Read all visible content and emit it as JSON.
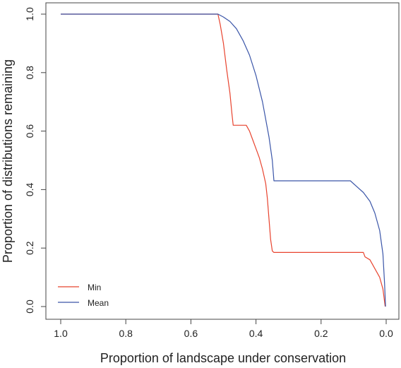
{
  "chart_data": {
    "type": "line",
    "title": "",
    "xlabel": "Proportion of landscape under conservation",
    "ylabel": "Proportion of distributions remaining",
    "xlim": [
      1.0,
      0.0
    ],
    "ylim": [
      0.0,
      1.0
    ],
    "x_ticks": [
      "1.0",
      "0.8",
      "0.6",
      "0.4",
      "0.2",
      "0.0"
    ],
    "y_ticks": [
      "0.0",
      "0.2",
      "0.4",
      "0.6",
      "0.8",
      "1.0"
    ],
    "grid": false,
    "legend": "bottom-left",
    "series": [
      {
        "name": "Min",
        "color": "#e8432e",
        "points": [
          [
            1.0,
            1.0
          ],
          [
            0.517,
            1.0
          ],
          [
            0.51,
            0.965
          ],
          [
            0.5,
            0.9
          ],
          [
            0.49,
            0.81
          ],
          [
            0.48,
            0.73
          ],
          [
            0.474,
            0.66
          ],
          [
            0.47,
            0.62
          ],
          [
            0.43,
            0.62
          ],
          [
            0.42,
            0.6
          ],
          [
            0.41,
            0.57
          ],
          [
            0.4,
            0.54
          ],
          [
            0.39,
            0.51
          ],
          [
            0.38,
            0.47
          ],
          [
            0.37,
            0.42
          ],
          [
            0.365,
            0.37
          ],
          [
            0.36,
            0.3
          ],
          [
            0.355,
            0.23
          ],
          [
            0.35,
            0.19
          ],
          [
            0.345,
            0.185
          ],
          [
            0.07,
            0.185
          ],
          [
            0.065,
            0.17
          ],
          [
            0.05,
            0.16
          ],
          [
            0.035,
            0.13
          ],
          [
            0.02,
            0.1
          ],
          [
            0.01,
            0.06
          ],
          [
            0.003,
            0.0
          ]
        ]
      },
      {
        "name": "Mean",
        "color": "#3a55a8",
        "points": [
          [
            1.0,
            1.0
          ],
          [
            0.517,
            1.0
          ],
          [
            0.5,
            0.99
          ],
          [
            0.48,
            0.975
          ],
          [
            0.46,
            0.95
          ],
          [
            0.44,
            0.91
          ],
          [
            0.42,
            0.86
          ],
          [
            0.4,
            0.79
          ],
          [
            0.38,
            0.7
          ],
          [
            0.36,
            0.58
          ],
          [
            0.35,
            0.5
          ],
          [
            0.345,
            0.43
          ],
          [
            0.11,
            0.43
          ],
          [
            0.09,
            0.41
          ],
          [
            0.07,
            0.39
          ],
          [
            0.05,
            0.36
          ],
          [
            0.035,
            0.32
          ],
          [
            0.02,
            0.26
          ],
          [
            0.01,
            0.18
          ],
          [
            0.005,
            0.08
          ],
          [
            0.002,
            0.0
          ]
        ]
      }
    ]
  }
}
